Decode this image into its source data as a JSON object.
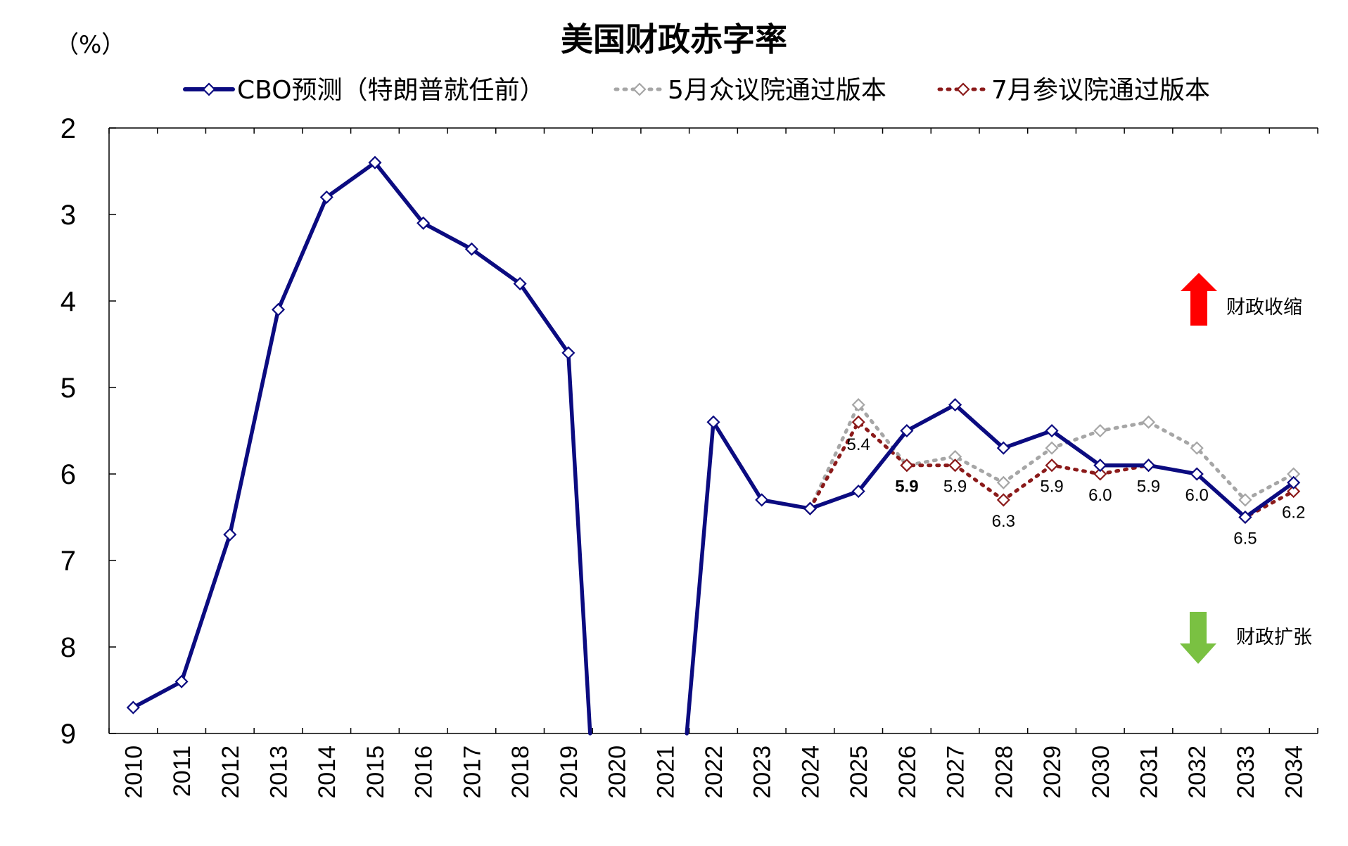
{
  "chart_data": {
    "type": "line",
    "title": "美国财政赤字率",
    "unit_label": "（%）",
    "ylim": [
      2,
      9
    ],
    "y_inverted": true,
    "y_ticks": [
      "2",
      "3",
      "4",
      "5",
      "6",
      "7",
      "8",
      "9"
    ],
    "categories": [
      "2010",
      "2011",
      "2012",
      "2013",
      "2014",
      "2015",
      "2016",
      "2017",
      "2018",
      "2019",
      "2020",
      "2021",
      "2022",
      "2023",
      "2024",
      "2025",
      "2026",
      "2027",
      "2028",
      "2029",
      "2030",
      "2031",
      "2032",
      "2033",
      "2034"
    ],
    "series": [
      {
        "name": "CBO预测（特朗普就任前）",
        "color": "#0b0b80",
        "style": "solid",
        "values": [
          8.7,
          8.4,
          6.7,
          4.1,
          2.8,
          2.4,
          3.1,
          3.4,
          3.8,
          4.6,
          null,
          null,
          5.4,
          6.3,
          6.4,
          6.2,
          5.5,
          5.2,
          5.7,
          5.5,
          5.9,
          5.9,
          6.0,
          6.5,
          6.1
        ],
        "offscale_segments": [
          [
            2019,
            2020
          ],
          [
            2021,
            2022
          ]
        ]
      },
      {
        "name": "5月众议院通过版本",
        "color": "#a6a6a6",
        "style": "dotted",
        "values": [
          null,
          null,
          null,
          null,
          null,
          null,
          null,
          null,
          null,
          null,
          null,
          null,
          null,
          null,
          6.4,
          5.2,
          5.9,
          5.8,
          6.1,
          5.7,
          5.5,
          5.4,
          5.7,
          6.3,
          6.0
        ]
      },
      {
        "name": "7月参议院通过版本",
        "color": "#8b1a1a",
        "style": "dotted",
        "values": [
          null,
          null,
          null,
          null,
          null,
          null,
          null,
          null,
          null,
          null,
          null,
          null,
          null,
          null,
          6.4,
          5.4,
          5.9,
          5.9,
          6.3,
          5.9,
          6.0,
          5.9,
          6.0,
          6.5,
          6.2
        ]
      }
    ],
    "data_labels": [
      {
        "year": "2025",
        "text": "5.4",
        "bold": false
      },
      {
        "year": "2026",
        "text": "5.9",
        "bold": true
      },
      {
        "year": "2027",
        "text": "5.9",
        "bold": false
      },
      {
        "year": "2028",
        "text": "6.3",
        "bold": false
      },
      {
        "year": "2029",
        "text": "5.9",
        "bold": false
      },
      {
        "year": "2030",
        "text": "6.0",
        "bold": false
      },
      {
        "year": "2031",
        "text": "5.9",
        "bold": false
      },
      {
        "year": "2032",
        "text": "6.0",
        "bold": false
      },
      {
        "year": "2033",
        "text": "6.5",
        "bold": false
      },
      {
        "year": "2034",
        "text": "6.2",
        "bold": false
      }
    ],
    "annotations": {
      "up": {
        "text": "财政收缩",
        "color": "#ff0000"
      },
      "down": {
        "text": "财政扩张",
        "color": "#7ac142"
      }
    },
    "grid": false,
    "legend_position": "top"
  }
}
